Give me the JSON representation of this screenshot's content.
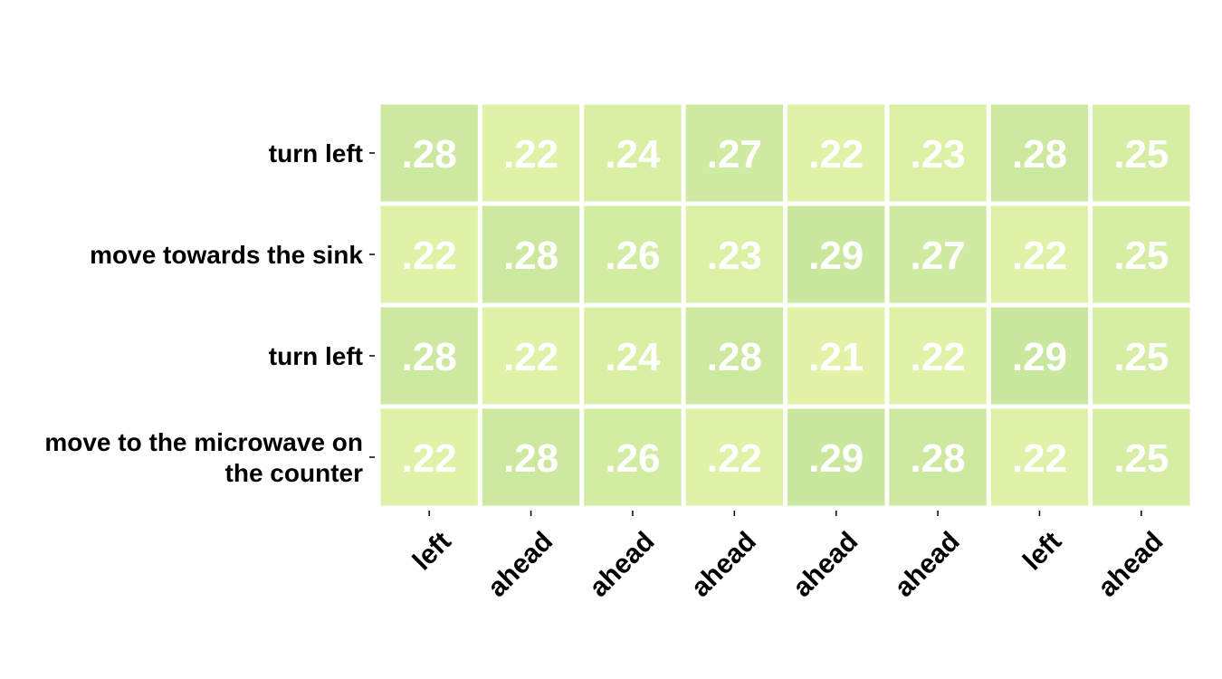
{
  "chart_data": {
    "type": "heatmap",
    "title": "",
    "xlabel": "",
    "ylabel": "",
    "rows": [
      "turn left",
      "move towards the sink",
      "turn left",
      "move to the microwave on the counter"
    ],
    "row_label_lines": [
      [
        "turn left"
      ],
      [
        "move towards the sink"
      ],
      [
        "turn left"
      ],
      [
        "move to the microwave on",
        "the counter"
      ]
    ],
    "columns": [
      "left",
      "ahead",
      "ahead",
      "ahead",
      "ahead",
      "ahead",
      "left",
      "ahead"
    ],
    "values": [
      [
        0.28,
        0.22,
        0.24,
        0.27,
        0.22,
        0.23,
        0.28,
        0.25
      ],
      [
        0.22,
        0.28,
        0.26,
        0.23,
        0.29,
        0.27,
        0.22,
        0.25
      ],
      [
        0.28,
        0.22,
        0.24,
        0.28,
        0.21,
        0.22,
        0.29,
        0.25
      ],
      [
        0.22,
        0.28,
        0.26,
        0.22,
        0.29,
        0.28,
        0.22,
        0.25
      ]
    ],
    "value_labels": [
      [
        ".28",
        ".22",
        ".24",
        ".27",
        ".22",
        ".23",
        ".28",
        ".25"
      ],
      [
        ".22",
        ".28",
        ".26",
        ".23",
        ".29",
        ".27",
        ".22",
        ".25"
      ],
      [
        ".28",
        ".22",
        ".24",
        ".28",
        ".21",
        ".22",
        ".29",
        ".25"
      ],
      [
        ".22",
        ".28",
        ".26",
        ".22",
        ".29",
        ".28",
        ".22",
        ".25"
      ]
    ],
    "color_scale": {
      "min_value": 0.21,
      "max_value": 0.29,
      "min_color": "#e2f3a8",
      "max_color": "#c9e89e"
    },
    "cell_text_color": "#ffffff",
    "grid_line_color": "#ffffff",
    "legend": "none"
  }
}
